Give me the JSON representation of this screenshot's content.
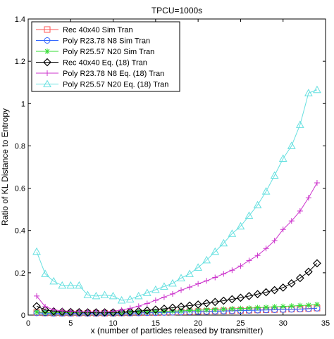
{
  "chart_data": {
    "type": "line",
    "title": "TPCU=1000s",
    "xlabel": "x (number of particles released by transmitter)",
    "ylabel": "Ratio of KL Distance to Entropy",
    "xlim": [
      0,
      35
    ],
    "ylim": [
      0,
      1.4
    ],
    "xticks": [
      0,
      5,
      10,
      15,
      20,
      25,
      30,
      35
    ],
    "yticks": [
      0,
      0.2,
      0.4,
      0.6,
      0.8,
      1,
      1.2,
      1.4
    ],
    "xtick_labels": [
      "0",
      "5",
      "10",
      "15",
      "20",
      "25",
      "30",
      "35"
    ],
    "ytick_labels": [
      "0",
      "0.2",
      "0.4",
      "0.6",
      "0.8",
      "1",
      "1.2",
      "1.4"
    ],
    "grid": false,
    "legend_position": "top-left",
    "x": [
      1,
      2,
      3,
      4,
      5,
      6,
      7,
      8,
      9,
      10,
      11,
      12,
      13,
      14,
      15,
      16,
      17,
      18,
      19,
      20,
      21,
      22,
      23,
      24,
      25,
      26,
      27,
      28,
      29,
      30,
      31,
      32,
      33,
      34
    ],
    "series": [
      {
        "name": "Rec 40x40 Sim Tran",
        "color": "#ff5555",
        "marker": "square",
        "values": [
          0.012,
          0.01,
          0.009,
          0.009,
          0.009,
          0.009,
          0.009,
          0.009,
          0.009,
          0.009,
          0.01,
          0.01,
          0.011,
          0.012,
          0.012,
          0.013,
          0.014,
          0.015,
          0.016,
          0.017,
          0.018,
          0.019,
          0.02,
          0.021,
          0.022,
          0.023,
          0.024,
          0.025,
          0.026,
          0.027,
          0.028,
          0.029,
          0.031,
          0.033
        ]
      },
      {
        "name": "Poly R23.78 N8 Sim Tran",
        "color": "#3366ff",
        "marker": "circle",
        "values": [
          0.01,
          0.009,
          0.008,
          0.008,
          0.008,
          0.008,
          0.008,
          0.008,
          0.008,
          0.008,
          0.009,
          0.009,
          0.01,
          0.011,
          0.011,
          0.012,
          0.013,
          0.014,
          0.015,
          0.016,
          0.017,
          0.018,
          0.019,
          0.02,
          0.021,
          0.022,
          0.023,
          0.024,
          0.025,
          0.026,
          0.027,
          0.028,
          0.03,
          0.032
        ]
      },
      {
        "name": "Poly R25.57 N20 Sim Tran",
        "color": "#33dd33",
        "marker": "star",
        "values": [
          0.015,
          0.013,
          0.012,
          0.012,
          0.012,
          0.012,
          0.012,
          0.012,
          0.012,
          0.012,
          0.013,
          0.014,
          0.015,
          0.016,
          0.017,
          0.018,
          0.019,
          0.02,
          0.022,
          0.023,
          0.025,
          0.026,
          0.028,
          0.03,
          0.031,
          0.033,
          0.035,
          0.037,
          0.039,
          0.041,
          0.043,
          0.045,
          0.047,
          0.05
        ]
      },
      {
        "name": "Rec 40x40 Eq. (18) Tran",
        "color": "#000000",
        "marker": "diamond",
        "values": [
          0.042,
          0.025,
          0.018,
          0.016,
          0.015,
          0.014,
          0.013,
          0.013,
          0.013,
          0.013,
          0.014,
          0.016,
          0.019,
          0.022,
          0.026,
          0.03,
          0.035,
          0.04,
          0.045,
          0.05,
          0.056,
          0.062,
          0.068,
          0.075,
          0.082,
          0.09,
          0.099,
          0.108,
          0.118,
          0.13,
          0.15,
          0.175,
          0.205,
          0.245
        ]
      },
      {
        "name": "Poly R23.78 N8 Eq. (18) Tran",
        "color": "#cc33cc",
        "marker": "plus",
        "values": [
          0.09,
          0.04,
          0.025,
          0.02,
          0.018,
          0.016,
          0.016,
          0.015,
          0.015,
          0.018,
          0.024,
          0.032,
          0.042,
          0.055,
          0.07,
          0.085,
          0.1,
          0.118,
          0.132,
          0.148,
          0.162,
          0.178,
          0.195,
          0.212,
          0.232,
          0.258,
          0.282,
          0.315,
          0.352,
          0.405,
          0.445,
          0.492,
          0.555,
          0.625
        ]
      },
      {
        "name": "Poly R25.57 N20 Eq. (18) Tran",
        "color": "#66e0e0",
        "marker": "triangle",
        "values": [
          0.3,
          0.195,
          0.16,
          0.14,
          0.14,
          0.14,
          0.095,
          0.09,
          0.095,
          0.09,
          0.07,
          0.075,
          0.09,
          0.105,
          0.12,
          0.135,
          0.15,
          0.175,
          0.195,
          0.225,
          0.26,
          0.3,
          0.34,
          0.385,
          0.42,
          0.47,
          0.52,
          0.585,
          0.66,
          0.74,
          0.8,
          0.9,
          1.05,
          1.065
        ]
      }
    ]
  }
}
